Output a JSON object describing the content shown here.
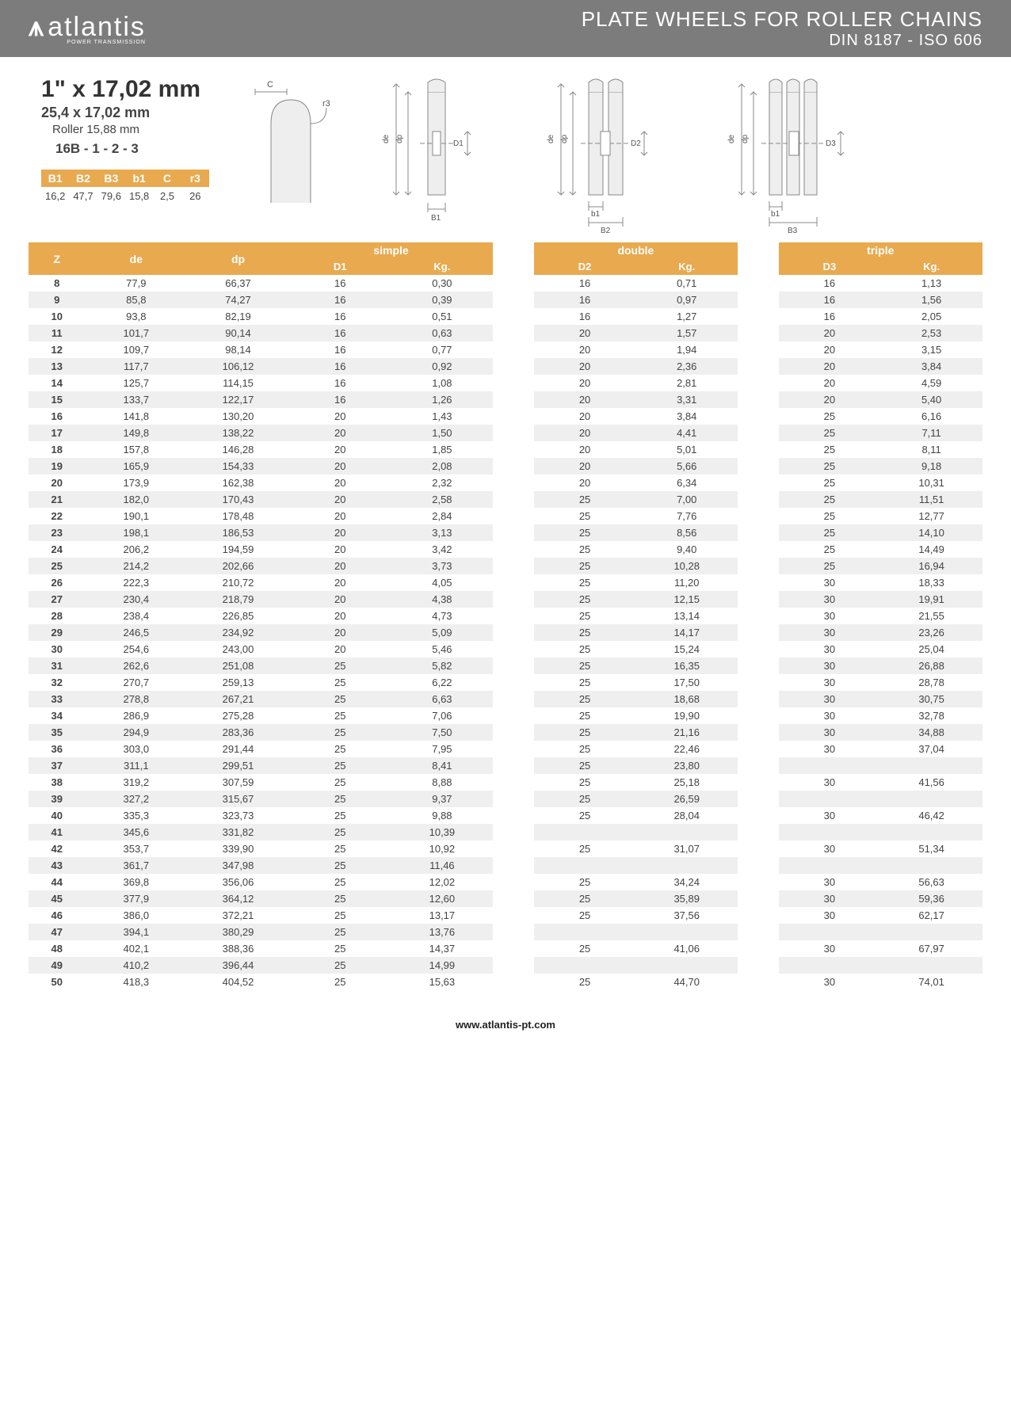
{
  "brand": {
    "name": "atlantis",
    "tagline": "POWER TRANSMISSION"
  },
  "header": {
    "line1": "PLATE WHEELS FOR ROLLER CHAINS",
    "line2": "DIN 8187 - ISO 606"
  },
  "spec": {
    "title": "1\" x 17,02 mm",
    "sub1": "25,4 x 17,02 mm",
    "sub2": "Roller 15,88 mm",
    "sub3": "16B - 1 - 2 - 3",
    "dim_headers": [
      "B1",
      "B2",
      "B3",
      "b1",
      "C",
      "r3"
    ],
    "dim_values": [
      "16,2",
      "47,7",
      "79,6",
      "15,8",
      "2,5",
      "26"
    ]
  },
  "diagram_labels": {
    "C": "C",
    "r3": "r3",
    "de": "de",
    "dp": "dp",
    "D1": "D1",
    "D2": "D2",
    "D3": "D3",
    "B1": "B1",
    "B2": "B2",
    "B3": "B3",
    "b1": "b1"
  },
  "table": {
    "groups": [
      "simple",
      "double",
      "triple"
    ],
    "z_label": "Z",
    "de_label": "de",
    "dp_label": "dp",
    "subheads": {
      "simple": [
        "D1",
        "Kg."
      ],
      "double": [
        "D2",
        "Kg."
      ],
      "triple": [
        "D3",
        "Kg."
      ]
    },
    "rows": [
      {
        "z": "8",
        "de": "77,9",
        "dp": "66,37",
        "s": [
          "16",
          "0,30"
        ],
        "d": [
          "16",
          "0,71"
        ],
        "t": [
          "16",
          "1,13"
        ]
      },
      {
        "z": "9",
        "de": "85,8",
        "dp": "74,27",
        "s": [
          "16",
          "0,39"
        ],
        "d": [
          "16",
          "0,97"
        ],
        "t": [
          "16",
          "1,56"
        ]
      },
      {
        "z": "10",
        "de": "93,8",
        "dp": "82,19",
        "s": [
          "16",
          "0,51"
        ],
        "d": [
          "16",
          "1,27"
        ],
        "t": [
          "16",
          "2,05"
        ]
      },
      {
        "z": "11",
        "de": "101,7",
        "dp": "90,14",
        "s": [
          "16",
          "0,63"
        ],
        "d": [
          "20",
          "1,57"
        ],
        "t": [
          "20",
          "2,53"
        ]
      },
      {
        "z": "12",
        "de": "109,7",
        "dp": "98,14",
        "s": [
          "16",
          "0,77"
        ],
        "d": [
          "20",
          "1,94"
        ],
        "t": [
          "20",
          "3,15"
        ]
      },
      {
        "z": "13",
        "de": "117,7",
        "dp": "106,12",
        "s": [
          "16",
          "0,92"
        ],
        "d": [
          "20",
          "2,36"
        ],
        "t": [
          "20",
          "3,84"
        ]
      },
      {
        "z": "14",
        "de": "125,7",
        "dp": "114,15",
        "s": [
          "16",
          "1,08"
        ],
        "d": [
          "20",
          "2,81"
        ],
        "t": [
          "20",
          "4,59"
        ]
      },
      {
        "z": "15",
        "de": "133,7",
        "dp": "122,17",
        "s": [
          "16",
          "1,26"
        ],
        "d": [
          "20",
          "3,31"
        ],
        "t": [
          "20",
          "5,40"
        ]
      },
      {
        "z": "16",
        "de": "141,8",
        "dp": "130,20",
        "s": [
          "20",
          "1,43"
        ],
        "d": [
          "20",
          "3,84"
        ],
        "t": [
          "25",
          "6,16"
        ]
      },
      {
        "z": "17",
        "de": "149,8",
        "dp": "138,22",
        "s": [
          "20",
          "1,50"
        ],
        "d": [
          "20",
          "4,41"
        ],
        "t": [
          "25",
          "7,11"
        ]
      },
      {
        "z": "18",
        "de": "157,8",
        "dp": "146,28",
        "s": [
          "20",
          "1,85"
        ],
        "d": [
          "20",
          "5,01"
        ],
        "t": [
          "25",
          "8,11"
        ]
      },
      {
        "z": "19",
        "de": "165,9",
        "dp": "154,33",
        "s": [
          "20",
          "2,08"
        ],
        "d": [
          "20",
          "5,66"
        ],
        "t": [
          "25",
          "9,18"
        ]
      },
      {
        "z": "20",
        "de": "173,9",
        "dp": "162,38",
        "s": [
          "20",
          "2,32"
        ],
        "d": [
          "20",
          "6,34"
        ],
        "t": [
          "25",
          "10,31"
        ]
      },
      {
        "z": "21",
        "de": "182,0",
        "dp": "170,43",
        "s": [
          "20",
          "2,58"
        ],
        "d": [
          "25",
          "7,00"
        ],
        "t": [
          "25",
          "11,51"
        ]
      },
      {
        "z": "22",
        "de": "190,1",
        "dp": "178,48",
        "s": [
          "20",
          "2,84"
        ],
        "d": [
          "25",
          "7,76"
        ],
        "t": [
          "25",
          "12,77"
        ]
      },
      {
        "z": "23",
        "de": "198,1",
        "dp": "186,53",
        "s": [
          "20",
          "3,13"
        ],
        "d": [
          "25",
          "8,56"
        ],
        "t": [
          "25",
          "14,10"
        ]
      },
      {
        "z": "24",
        "de": "206,2",
        "dp": "194,59",
        "s": [
          "20",
          "3,42"
        ],
        "d": [
          "25",
          "9,40"
        ],
        "t": [
          "25",
          "14,49"
        ]
      },
      {
        "z": "25",
        "de": "214,2",
        "dp": "202,66",
        "s": [
          "20",
          "3,73"
        ],
        "d": [
          "25",
          "10,28"
        ],
        "t": [
          "25",
          "16,94"
        ]
      },
      {
        "z": "26",
        "de": "222,3",
        "dp": "210,72",
        "s": [
          "20",
          "4,05"
        ],
        "d": [
          "25",
          "11,20"
        ],
        "t": [
          "30",
          "18,33"
        ]
      },
      {
        "z": "27",
        "de": "230,4",
        "dp": "218,79",
        "s": [
          "20",
          "4,38"
        ],
        "d": [
          "25",
          "12,15"
        ],
        "t": [
          "30",
          "19,91"
        ]
      },
      {
        "z": "28",
        "de": "238,4",
        "dp": "226,85",
        "s": [
          "20",
          "4,73"
        ],
        "d": [
          "25",
          "13,14"
        ],
        "t": [
          "30",
          "21,55"
        ]
      },
      {
        "z": "29",
        "de": "246,5",
        "dp": "234,92",
        "s": [
          "20",
          "5,09"
        ],
        "d": [
          "25",
          "14,17"
        ],
        "t": [
          "30",
          "23,26"
        ]
      },
      {
        "z": "30",
        "de": "254,6",
        "dp": "243,00",
        "s": [
          "20",
          "5,46"
        ],
        "d": [
          "25",
          "15,24"
        ],
        "t": [
          "30",
          "25,04"
        ]
      },
      {
        "z": "31",
        "de": "262,6",
        "dp": "251,08",
        "s": [
          "25",
          "5,82"
        ],
        "d": [
          "25",
          "16,35"
        ],
        "t": [
          "30",
          "26,88"
        ]
      },
      {
        "z": "32",
        "de": "270,7",
        "dp": "259,13",
        "s": [
          "25",
          "6,22"
        ],
        "d": [
          "25",
          "17,50"
        ],
        "t": [
          "30",
          "28,78"
        ]
      },
      {
        "z": "33",
        "de": "278,8",
        "dp": "267,21",
        "s": [
          "25",
          "6,63"
        ],
        "d": [
          "25",
          "18,68"
        ],
        "t": [
          "30",
          "30,75"
        ]
      },
      {
        "z": "34",
        "de": "286,9",
        "dp": "275,28",
        "s": [
          "25",
          "7,06"
        ],
        "d": [
          "25",
          "19,90"
        ],
        "t": [
          "30",
          "32,78"
        ]
      },
      {
        "z": "35",
        "de": "294,9",
        "dp": "283,36",
        "s": [
          "25",
          "7,50"
        ],
        "d": [
          "25",
          "21,16"
        ],
        "t": [
          "30",
          "34,88"
        ]
      },
      {
        "z": "36",
        "de": "303,0",
        "dp": "291,44",
        "s": [
          "25",
          "7,95"
        ],
        "d": [
          "25",
          "22,46"
        ],
        "t": [
          "30",
          "37,04"
        ]
      },
      {
        "z": "37",
        "de": "311,1",
        "dp": "299,51",
        "s": [
          "25",
          "8,41"
        ],
        "d": [
          "25",
          "23,80"
        ],
        "t": [
          "",
          ""
        ]
      },
      {
        "z": "38",
        "de": "319,2",
        "dp": "307,59",
        "s": [
          "25",
          "8,88"
        ],
        "d": [
          "25",
          "25,18"
        ],
        "t": [
          "30",
          "41,56"
        ]
      },
      {
        "z": "39",
        "de": "327,2",
        "dp": "315,67",
        "s": [
          "25",
          "9,37"
        ],
        "d": [
          "25",
          "26,59"
        ],
        "t": [
          "",
          ""
        ]
      },
      {
        "z": "40",
        "de": "335,3",
        "dp": "323,73",
        "s": [
          "25",
          "9,88"
        ],
        "d": [
          "25",
          "28,04"
        ],
        "t": [
          "30",
          "46,42"
        ]
      },
      {
        "z": "41",
        "de": "345,6",
        "dp": "331,82",
        "s": [
          "25",
          "10,39"
        ],
        "d": [
          "",
          ""
        ],
        "t": [
          "",
          ""
        ]
      },
      {
        "z": "42",
        "de": "353,7",
        "dp": "339,90",
        "s": [
          "25",
          "10,92"
        ],
        "d": [
          "25",
          "31,07"
        ],
        "t": [
          "30",
          "51,34"
        ]
      },
      {
        "z": "43",
        "de": "361,7",
        "dp": "347,98",
        "s": [
          "25",
          "11,46"
        ],
        "d": [
          "",
          ""
        ],
        "t": [
          "",
          ""
        ]
      },
      {
        "z": "44",
        "de": "369,8",
        "dp": "356,06",
        "s": [
          "25",
          "12,02"
        ],
        "d": [
          "25",
          "34,24"
        ],
        "t": [
          "30",
          "56,63"
        ]
      },
      {
        "z": "45",
        "de": "377,9",
        "dp": "364,12",
        "s": [
          "25",
          "12,60"
        ],
        "d": [
          "25",
          "35,89"
        ],
        "t": [
          "30",
          "59,36"
        ]
      },
      {
        "z": "46",
        "de": "386,0",
        "dp": "372,21",
        "s": [
          "25",
          "13,17"
        ],
        "d": [
          "25",
          "37,56"
        ],
        "t": [
          "30",
          "62,17"
        ]
      },
      {
        "z": "47",
        "de": "394,1",
        "dp": "380,29",
        "s": [
          "25",
          "13,76"
        ],
        "d": [
          "",
          ""
        ],
        "t": [
          "",
          ""
        ]
      },
      {
        "z": "48",
        "de": "402,1",
        "dp": "388,36",
        "s": [
          "25",
          "14,37"
        ],
        "d": [
          "25",
          "41,06"
        ],
        "t": [
          "30",
          "67,97"
        ]
      },
      {
        "z": "49",
        "de": "410,2",
        "dp": "396,44",
        "s": [
          "25",
          "14,99"
        ],
        "d": [
          "",
          ""
        ],
        "t": [
          "",
          ""
        ]
      },
      {
        "z": "50",
        "de": "418,3",
        "dp": "404,52",
        "s": [
          "25",
          "15,63"
        ],
        "d": [
          "25",
          "44,70"
        ],
        "t": [
          "30",
          "74,01"
        ]
      }
    ]
  },
  "footer": {
    "url": "www.atlantis-pt.com"
  },
  "colors": {
    "band": "#7c7c7c",
    "accent": "#e9a94f",
    "row_alt": "#efefef",
    "text": "#444444"
  }
}
